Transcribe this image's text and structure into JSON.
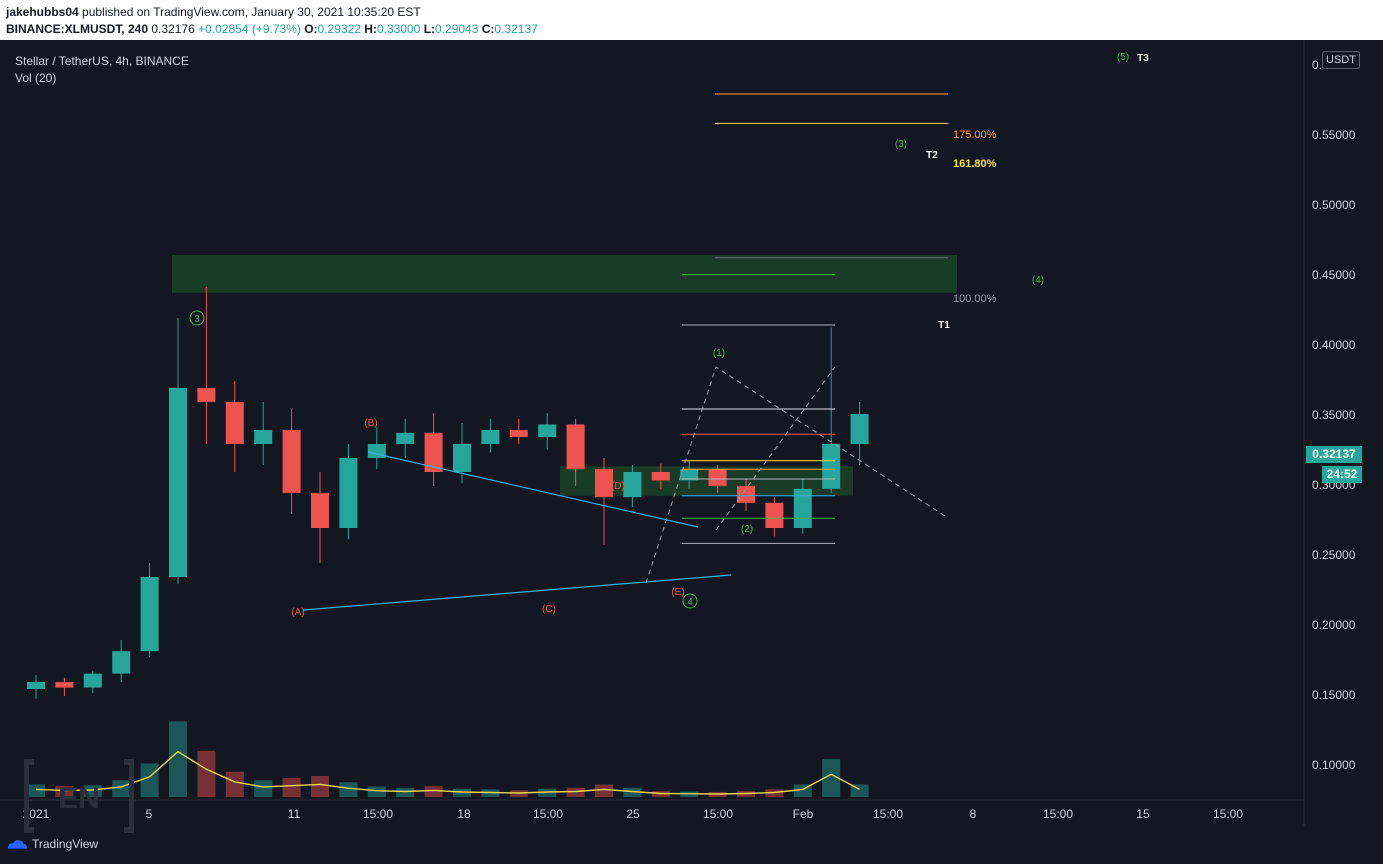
{
  "header": {
    "publisher": "jakehubbs04",
    "published_text": " published on TradingView.com, January 30, 2021 10:35:20 EST"
  },
  "ohlc": {
    "symbol": "BINANCE:XLMUSDT, 240",
    "price": "0.32176",
    "change": "+0.02854 (+9.73%)",
    "o_label": "O:",
    "o": "0.29322",
    "h_label": "H:",
    "h": "0.33000",
    "l_label": "L:",
    "l": "0.29043",
    "c_label": "C:",
    "c": "0.32137"
  },
  "legend": {
    "title": "Stellar / TetherUS, 4h, BINANCE",
    "vol": "Vol (20)"
  },
  "price_axis": {
    "currency": "USDT",
    "ticks": [
      "0.10000",
      "0.15000",
      "0.20000",
      "0.25000",
      "0.30000",
      "0.35000",
      "0.40000",
      "0.45000",
      "0.50000",
      "0.55000",
      "0."
    ],
    "last_price": "0.32137",
    "countdown": "24:52"
  },
  "time_axis": {
    "labels": [
      "2021",
      "5",
      "11",
      "15:00",
      "18",
      "15:00",
      "25",
      "15:00",
      "Feb",
      "15:00",
      "8",
      "15:00",
      "15",
      "15:00"
    ]
  },
  "annotations": {
    "wave3": "3",
    "wave4": "4",
    "A": "(A)",
    "B": "(B)",
    "C": "(C)",
    "D": "(D)",
    "E": "(E)",
    "w1": "(1)",
    "w2": "(2)",
    "w3": "(3)",
    "w4": "(4)",
    "w5": "(5)",
    "T1": "T1",
    "T2": "T2",
    "T3": "T3",
    "fib100": "100.00%",
    "fib161": "161.80%",
    "fib175": "175.00%"
  },
  "colors": {
    "up": "#26a69a",
    "down": "#ef5350",
    "bg": "#131722",
    "zone": "#1e4a2a",
    "trendline": "#3ab0d8",
    "ma": "#e8d44d"
  },
  "branding": {
    "tradingview": "TradingView",
    "watermark": "EN"
  },
  "chart_data": {
    "type": "candlestick",
    "title": "Stellar / TetherUS, 4h, BINANCE",
    "ylabel": "USDT",
    "ylim": [
      0.075,
      0.6
    ],
    "x_range": [
      "2021-01-01",
      "2021-02-20"
    ],
    "bars": [
      [
        "2021-01-01",
        0.125,
        0.135,
        0.118,
        0.13,
        0.03
      ],
      [
        "2021-01-02",
        0.13,
        0.133,
        0.12,
        0.126,
        0.026
      ],
      [
        "2021-01-03",
        0.126,
        0.138,
        0.122,
        0.136,
        0.028
      ],
      [
        "2021-01-04",
        0.136,
        0.16,
        0.13,
        0.152,
        0.04
      ],
      [
        "2021-01-05",
        0.152,
        0.215,
        0.148,
        0.205,
        0.08
      ],
      [
        "2021-01-06",
        0.205,
        0.39,
        0.2,
        0.34,
        0.18
      ],
      [
        "2021-01-07",
        0.34,
        0.412,
        0.3,
        0.33,
        0.11
      ],
      [
        "2021-01-08",
        0.33,
        0.345,
        0.28,
        0.3,
        0.06
      ],
      [
        "2021-01-09",
        0.3,
        0.33,
        0.285,
        0.31,
        0.04
      ],
      [
        "2021-01-10",
        0.31,
        0.325,
        0.25,
        0.265,
        0.045
      ],
      [
        "2021-01-11",
        0.265,
        0.28,
        0.215,
        0.24,
        0.05
      ],
      [
        "2021-01-12",
        0.24,
        0.3,
        0.232,
        0.29,
        0.035
      ],
      [
        "2021-01-13",
        0.29,
        0.312,
        0.282,
        0.3,
        0.025
      ],
      [
        "2021-01-14",
        0.3,
        0.318,
        0.29,
        0.308,
        0.022
      ],
      [
        "2021-01-15",
        0.308,
        0.322,
        0.27,
        0.28,
        0.026
      ],
      [
        "2021-01-16",
        0.28,
        0.315,
        0.272,
        0.3,
        0.02
      ],
      [
        "2021-01-17",
        0.3,
        0.318,
        0.294,
        0.31,
        0.018
      ],
      [
        "2021-01-18",
        0.31,
        0.318,
        0.3,
        0.305,
        0.016
      ],
      [
        "2021-01-19",
        0.305,
        0.322,
        0.296,
        0.314,
        0.02
      ],
      [
        "2021-01-20",
        0.314,
        0.318,
        0.27,
        0.282,
        0.022
      ],
      [
        "2021-01-21",
        0.282,
        0.29,
        0.228,
        0.262,
        0.03
      ],
      [
        "2021-01-22",
        0.262,
        0.285,
        0.255,
        0.28,
        0.022
      ],
      [
        "2021-01-23",
        0.28,
        0.286,
        0.268,
        0.274,
        0.014
      ],
      [
        "2021-01-24",
        0.274,
        0.288,
        0.268,
        0.282,
        0.013
      ],
      [
        "2021-01-25",
        0.282,
        0.285,
        0.265,
        0.27,
        0.012
      ],
      [
        "2021-01-26",
        0.27,
        0.275,
        0.252,
        0.258,
        0.014
      ],
      [
        "2021-01-27",
        0.258,
        0.262,
        0.234,
        0.24,
        0.018
      ],
      [
        "2021-01-28",
        0.24,
        0.275,
        0.236,
        0.268,
        0.03
      ],
      [
        "2021-01-29",
        0.268,
        0.383,
        0.265,
        0.3,
        0.09
      ],
      [
        "2021-01-30",
        0.3,
        0.33,
        0.285,
        0.32137,
        0.03
      ]
    ],
    "moving_average": {
      "name": "Vol (20)",
      "period": 20
    }
  }
}
